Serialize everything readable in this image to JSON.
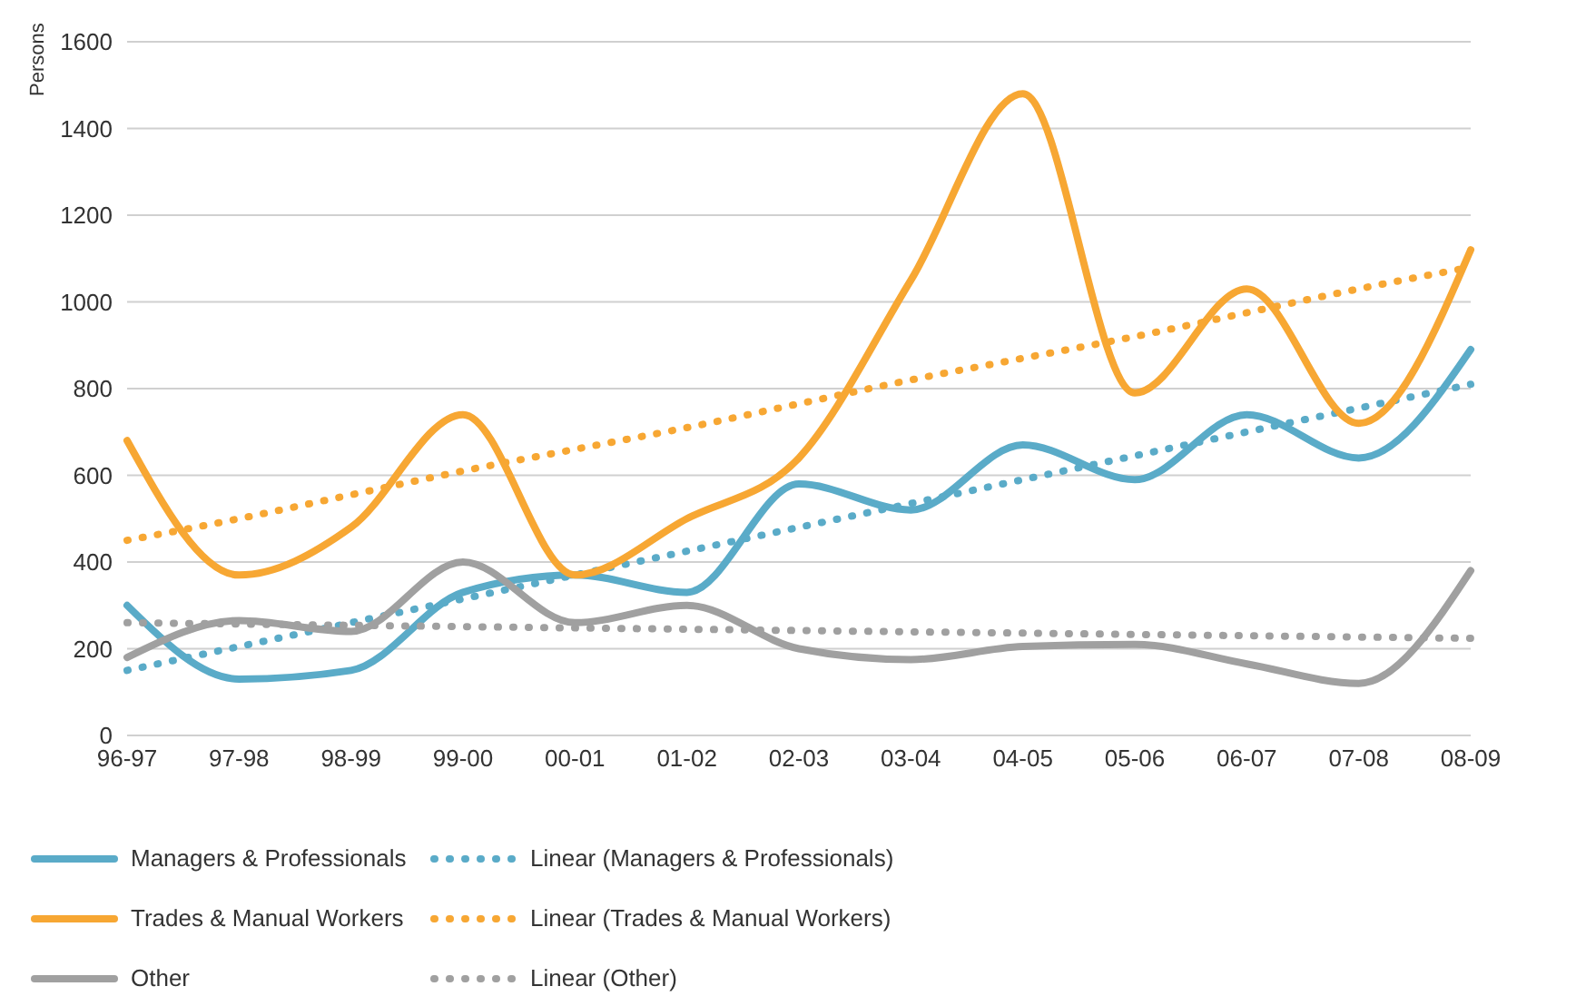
{
  "chart_data": {
    "type": "line",
    "ylabel": "Persons",
    "categories": [
      "96-97",
      "97-98",
      "98-99",
      "99-00",
      "00-01",
      "01-02",
      "02-03",
      "03-04",
      "04-05",
      "05-06",
      "06-07",
      "07-08",
      "08-09"
    ],
    "ylim": [
      0,
      1600
    ],
    "yticks": [
      0,
      200,
      400,
      600,
      800,
      1000,
      1200,
      1400,
      1600
    ],
    "grid": "y",
    "legend": "bottom",
    "marker": "none",
    "series": [
      {
        "name": "Managers & Professionals",
        "color": "#5aabc8",
        "line_style": "solid",
        "values": [
          300,
          130,
          150,
          330,
          370,
          330,
          580,
          520,
          670,
          590,
          740,
          640,
          890
        ]
      },
      {
        "name": "Linear (Managers & Professionals)",
        "color": "#5aabc8",
        "line_style": "dotted",
        "values": [
          150,
          205,
          260,
          315,
          370,
          425,
          480,
          535,
          590,
          645,
          700,
          755,
          810
        ]
      },
      {
        "name": "Trades & Manual Workers",
        "color": "#f7a733",
        "line_style": "solid",
        "values": [
          680,
          370,
          480,
          740,
          370,
          500,
          640,
          1050,
          1480,
          790,
          1030,
          720,
          1120
        ]
      },
      {
        "name": "Linear (Trades & Manual Workers)",
        "color": "#f7a733",
        "line_style": "dotted",
        "values": [
          450,
          500,
          555,
          610,
          660,
          710,
          765,
          820,
          870,
          920,
          975,
          1030,
          1080
        ]
      },
      {
        "name": "Other",
        "color": "#a0a0a0",
        "line_style": "solid",
        "values": [
          180,
          265,
          240,
          400,
          260,
          300,
          200,
          175,
          205,
          210,
          165,
          120,
          380
        ]
      },
      {
        "name": "Linear (Other)",
        "color": "#a0a0a0",
        "line_style": "dotted",
        "values": [
          260,
          257,
          254,
          251,
          248,
          245,
          242,
          239,
          236,
          233,
          230,
          227,
          224
        ]
      }
    ]
  }
}
